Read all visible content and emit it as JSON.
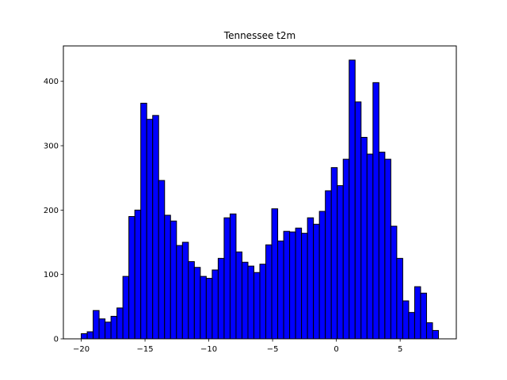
{
  "chart_data": {
    "type": "bar",
    "title": "Tennessee t2m",
    "xlabel": "",
    "ylabel": "",
    "bin_width": 0.4667,
    "bin_start": -20,
    "values": [
      8,
      11,
      44,
      31,
      26,
      35,
      48,
      97,
      190,
      200,
      366,
      341,
      347,
      246,
      192,
      183,
      145,
      150,
      120,
      111,
      97,
      94,
      107,
      125,
      188,
      194,
      135,
      119,
      113,
      103,
      116,
      146,
      202,
      152,
      167,
      166,
      172,
      164,
      188,
      178,
      198,
      230,
      266,
      238,
      279,
      433,
      368,
      313,
      287,
      398,
      290,
      279,
      175,
      125,
      59,
      41,
      81,
      71,
      25,
      13
    ],
    "xlim": [
      -21.4,
      9.4
    ],
    "ylim": [
      0,
      455
    ],
    "xticks": [
      -20,
      -15,
      -10,
      -5,
      0,
      5
    ],
    "xtick_labels": [
      "−20",
      "−15",
      "−10",
      "−5",
      "0",
      "5"
    ],
    "yticks": [
      0,
      100,
      200,
      300,
      400
    ],
    "ytick_labels": [
      "0",
      "100",
      "200",
      "300",
      "400"
    ],
    "bar_color": "#0000ff",
    "edge_color": "#000000",
    "grid": false
  }
}
